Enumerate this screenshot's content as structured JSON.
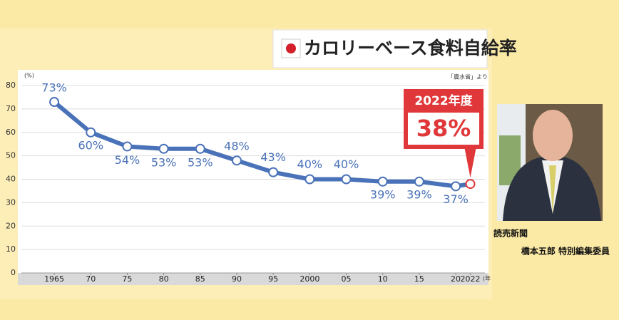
{
  "title": "カロリーベース食料自給率",
  "source": "「農水省」より",
  "caption": {
    "outlet": "読売新聞",
    "person": "橋本五郎 特別編集委員"
  },
  "chart_data": {
    "type": "line",
    "y_unit_label": "(%)",
    "x_unit_label": "(年",
    "x": [
      1965,
      1970,
      1975,
      1980,
      1985,
      1990,
      1995,
      2000,
      2005,
      2010,
      2015,
      2020,
      2022
    ],
    "values": [
      73,
      60,
      54,
      53,
      53,
      48,
      43,
      40,
      40,
      39,
      39,
      37,
      38
    ],
    "value_labels": [
      "73%",
      "60%",
      "54%",
      "53%",
      "53%",
      "48%",
      "43%",
      "40%",
      "40%",
      "39%",
      "39%",
      "37%",
      "38%"
    ],
    "annotation": "2022年度",
    "color": "#4a72b8",
    "highlight_color": "#e0383a",
    "xlim": [
      1960.5,
      2024
    ],
    "ylim": [
      0,
      80
    ],
    "xticks": [
      1965,
      {
        "value": 1970,
        "label": "70"
      },
      {
        "value": 1975,
        "label": "75"
      },
      {
        "value": 1980,
        "label": "80"
      },
      {
        "value": 1985,
        "label": "85"
      },
      {
        "value": 1990,
        "label": "90"
      },
      {
        "value": 1995,
        "label": "95"
      },
      2000,
      {
        "value": 2005,
        "label": "05"
      },
      {
        "value": 2010,
        "label": "10"
      },
      {
        "value": 2015,
        "label": "15"
      },
      {
        "value": 2020,
        "label": "20"
      },
      2022
    ],
    "yticks": [
      0,
      10,
      20,
      30,
      40,
      50,
      60,
      70,
      80
    ],
    "grid": true
  }
}
